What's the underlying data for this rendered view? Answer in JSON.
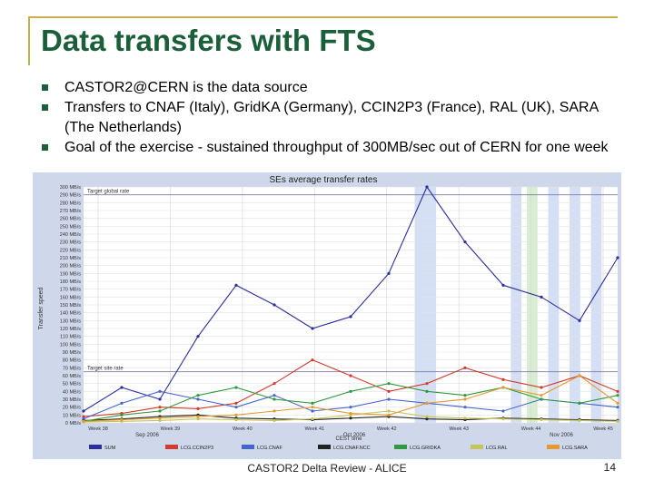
{
  "slide": {
    "title": "Data transfers with FTS",
    "bullets": [
      "CASTOR2@CERN is the data source",
      "Transfers to CNAF (Italy), GridKA (Germany), CCIN2P3 (France), RAL (UK), SARA (The Netherlands)",
      "Goal of the exercise - sustained throughput of 300MB/sec out of CERN for one week"
    ],
    "footer": "CASTOR2 Delta Review - ALICE",
    "page_number": "14"
  },
  "chart_data": {
    "type": "line",
    "title": "SEs average transfer rates",
    "ylabel": "Transfer speed",
    "xlabel": "CEST time",
    "ylim": [
      0,
      300
    ],
    "y_ticks": [
      "0 MB/s",
      "10 MB/s",
      "20 MB/s",
      "30 MB/s",
      "40 MB/s",
      "50 MB/s",
      "60 MB/s",
      "70 MB/s",
      "80 MB/s",
      "90 MB/s",
      "100 MB/s",
      "110 MB/s",
      "120 MB/s",
      "130 MB/s",
      "140 MB/s",
      "150 MB/s",
      "160 MB/s",
      "170 MB/s",
      "180 MB/s",
      "190 MB/s",
      "200 MB/s",
      "210 MB/s",
      "220 MB/s",
      "230 MB/s",
      "240 MB/s",
      "250 MB/s",
      "260 MB/s",
      "270 MB/s",
      "280 MB/s",
      "290 MB/s",
      "300 MB/s"
    ],
    "x_ticks": [
      "Week 38",
      "Week 39",
      "Week 40",
      "Week 41",
      "Week 42",
      "Week 43",
      "Week 44",
      "Week 45"
    ],
    "month_labels": [
      "Sep 2006",
      "Oct 2006",
      "Nov 2006"
    ],
    "reference_lines": [
      {
        "label": "Target global rate",
        "value": 290
      },
      {
        "label": "Target site rate",
        "value": 65
      }
    ],
    "x": [
      0,
      4,
      8,
      12,
      16,
      20,
      24,
      28,
      32,
      36,
      40,
      44,
      48,
      52,
      56
    ],
    "series": [
      {
        "name": "SUM",
        "color": "#2a2f9a",
        "values": [
          15,
          45,
          30,
          110,
          175,
          150,
          120,
          135,
          190,
          300,
          230,
          175,
          160,
          130,
          210
        ]
      },
      {
        "name": "LCG.CCIN2P3",
        "color": "#d33b2c",
        "values": [
          8,
          12,
          20,
          18,
          25,
          50,
          80,
          60,
          40,
          50,
          70,
          55,
          45,
          60,
          40
        ]
      },
      {
        "name": "LCG.CNAF",
        "color": "#4466cc",
        "values": [
          5,
          25,
          40,
          30,
          20,
          35,
          15,
          20,
          30,
          25,
          20,
          15,
          30,
          25,
          20
        ]
      },
      {
        "name": "LCG.CNAF.NCC",
        "color": "#222222",
        "values": [
          3,
          5,
          8,
          10,
          6,
          5,
          4,
          6,
          8,
          5,
          4,
          6,
          5,
          4,
          3
        ]
      },
      {
        "name": "LCG.GRIDKA",
        "color": "#2e9a3e",
        "values": [
          2,
          10,
          15,
          35,
          45,
          30,
          25,
          40,
          50,
          40,
          35,
          45,
          30,
          25,
          35
        ]
      },
      {
        "name": "LCG.RAL",
        "color": "#c4c45a",
        "values": [
          1,
          2,
          3,
          5,
          4,
          3,
          5,
          10,
          15,
          8,
          6,
          5,
          4,
          3,
          2
        ]
      },
      {
        "name": "LCG.SARA",
        "color": "#e39a30",
        "values": [
          2,
          4,
          6,
          8,
          10,
          15,
          20,
          12,
          10,
          25,
          30,
          45,
          35,
          60,
          25
        ]
      }
    ]
  }
}
